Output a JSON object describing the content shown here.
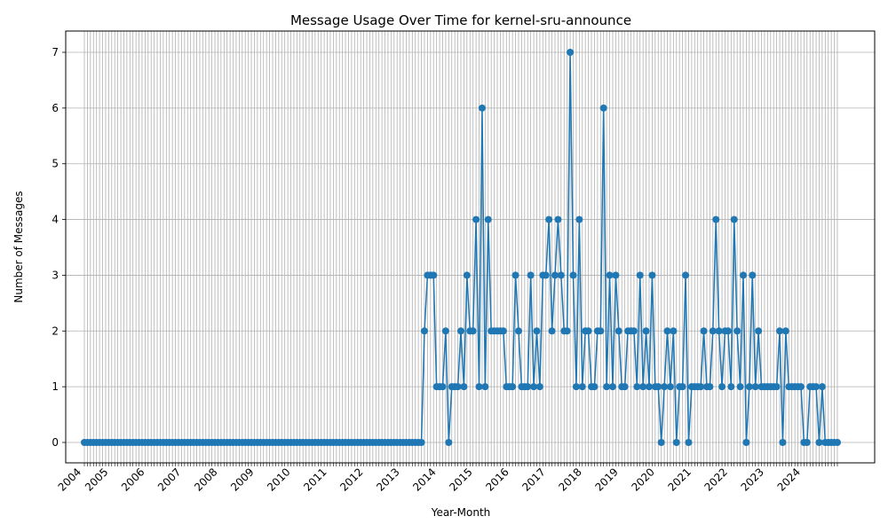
{
  "chart_data": {
    "type": "line",
    "title": "Message Usage Over Time for kernel-sru-announce",
    "xlabel": "Year-Month",
    "ylabel": "Number of Messages",
    "ylim": [
      0,
      7
    ],
    "yticks": [
      0,
      1,
      2,
      3,
      4,
      5,
      6,
      7
    ],
    "x_start": "2004-05",
    "year_ticks": [
      "2004",
      "2005",
      "2006",
      "2007",
      "2008",
      "2009",
      "2010",
      "2011",
      "2012",
      "2013",
      "2014",
      "2015",
      "2016",
      "2017",
      "2018",
      "2019",
      "2020",
      "2021",
      "2022",
      "2023",
      "2024"
    ],
    "grid": true,
    "line_color": "#1f77b4",
    "marker": "circle",
    "series": [
      {
        "values": [
          0,
          0,
          0,
          0,
          0,
          0,
          0,
          0,
          0,
          0,
          0,
          0,
          0,
          0,
          0,
          0,
          0,
          0,
          0,
          0,
          0,
          0,
          0,
          0,
          0,
          0,
          0,
          0,
          0,
          0,
          0,
          0,
          0,
          0,
          0,
          0,
          0,
          0,
          0,
          0,
          0,
          0,
          0,
          0,
          0,
          0,
          0,
          0,
          0,
          0,
          0,
          0,
          0,
          0,
          0,
          0,
          0,
          0,
          0,
          0,
          0,
          0,
          0,
          0,
          0,
          0,
          0,
          0,
          0,
          0,
          0,
          0,
          0,
          0,
          0,
          0,
          0,
          0,
          0,
          0,
          0,
          0,
          0,
          0,
          0,
          0,
          0,
          0,
          0,
          0,
          0,
          0,
          0,
          0,
          0,
          0,
          0,
          0,
          0,
          0,
          0,
          0,
          0,
          0,
          0,
          0,
          0,
          0,
          0,
          0,
          0,
          0,
          2,
          3,
          3,
          3,
          1,
          1,
          1,
          2,
          0,
          1,
          1,
          1,
          2,
          1,
          3,
          2,
          2,
          4,
          1,
          6,
          1,
          4,
          2,
          2,
          2,
          2,
          2,
          1,
          1,
          1,
          3,
          2,
          1,
          1,
          1,
          3,
          1,
          2,
          1,
          3,
          3,
          4,
          2,
          3,
          4,
          3,
          2,
          2,
          7,
          3,
          1,
          4,
          1,
          2,
          2,
          1,
          1,
          2,
          2,
          6,
          1,
          3,
          1,
          3,
          2,
          1,
          1,
          2,
          2,
          2,
          1,
          3,
          1,
          2,
          1,
          3,
          1,
          1,
          0,
          1,
          2,
          1,
          2,
          0,
          1,
          1,
          3,
          0,
          1,
          1,
          1,
          1,
          2,
          1,
          1,
          2,
          4,
          2,
          1,
          2,
          2,
          1,
          4,
          2,
          1,
          3,
          0,
          1,
          3,
          1,
          2,
          1,
          1,
          1,
          1,
          1,
          1,
          2,
          0,
          2,
          1,
          1,
          1,
          1,
          1,
          0,
          0,
          1,
          1,
          1,
          0,
          1,
          0,
          0,
          0,
          0,
          0
        ]
      }
    ]
  }
}
